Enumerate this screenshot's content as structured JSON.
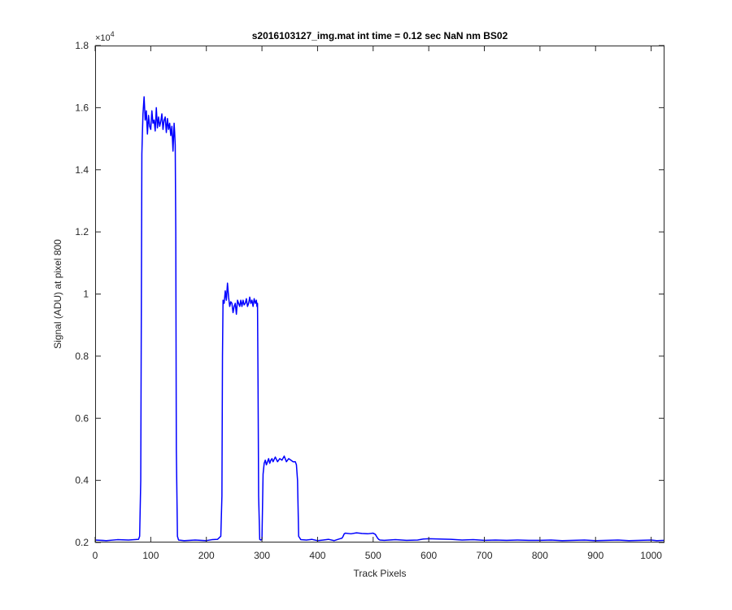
{
  "chart_data": {
    "type": "line",
    "title": "s2016103127_img.mat int time = 0.12 sec  NaN nm BS02",
    "xlabel": "Track Pixels",
    "ylabel": "Signal (ADU) at pixel 800",
    "xlim": [
      0,
      1024
    ],
    "ylim": [
      2000,
      18000
    ],
    "xticks": [
      0,
      100,
      200,
      300,
      400,
      500,
      600,
      700,
      800,
      900,
      1000
    ],
    "xtick_labels": [
      "0",
      "100",
      "200",
      "300",
      "400",
      "500",
      "600",
      "700",
      "800",
      "900",
      "1000"
    ],
    "yticks": [
      2000,
      4000,
      6000,
      8000,
      10000,
      12000,
      14000,
      16000,
      18000
    ],
    "ytick_labels": [
      "0.2",
      "0.4",
      "0.6",
      "0.8",
      "1",
      "1.2",
      "1.4",
      "1.6",
      "1.8"
    ],
    "y_exponent_base": "×10",
    "y_exponent_power": "4",
    "grid": false,
    "line_color": "#0000ff",
    "series": [
      {
        "x": [
          0,
          20,
          40,
          60,
          78,
          80,
          82,
          84,
          85,
          86,
          88,
          90,
          92,
          94,
          96,
          98,
          100,
          102,
          104,
          106,
          108,
          110,
          112,
          114,
          116,
          118,
          120,
          122,
          124,
          126,
          128,
          130,
          132,
          134,
          136,
          138,
          140,
          142,
          143,
          144,
          145,
          146,
          148,
          150,
          160,
          180,
          200,
          210,
          220,
          226,
          228,
          229,
          230,
          232,
          234,
          236,
          238,
          240,
          242,
          244,
          246,
          248,
          250,
          252,
          254,
          256,
          258,
          260,
          262,
          264,
          266,
          268,
          270,
          272,
          274,
          276,
          278,
          280,
          282,
          284,
          286,
          288,
          290,
          291,
          292,
          293,
          294,
          296,
          298,
          300,
          302,
          304,
          306,
          308,
          310,
          312,
          314,
          316,
          318,
          320,
          324,
          328,
          332,
          336,
          340,
          344,
          348,
          352,
          356,
          360,
          362,
          364,
          366,
          370,
          380,
          390,
          400,
          410,
          420,
          430,
          440,
          444,
          446,
          448,
          450,
          460,
          470,
          480,
          490,
          500,
          504,
          506,
          508,
          510,
          512,
          520,
          540,
          560,
          580,
          590,
          600,
          620,
          640,
          660,
          680,
          700,
          720,
          740,
          760,
          780,
          800,
          820,
          840,
          860,
          880,
          900,
          920,
          940,
          960,
          980,
          1000,
          1010,
          1024
        ],
        "y": [
          2080,
          2060,
          2090,
          2080,
          2100,
          2200,
          4000,
          14500,
          15200,
          15800,
          16350,
          15600,
          15900,
          15150,
          15750,
          15400,
          15300,
          15900,
          15500,
          15600,
          15250,
          16000,
          15350,
          15700,
          15400,
          15550,
          15800,
          15300,
          15600,
          15700,
          15200,
          15650,
          15300,
          15500,
          15100,
          15400,
          14600,
          15500,
          15200,
          14800,
          12000,
          5000,
          2200,
          2080,
          2060,
          2080,
          2060,
          2090,
          2100,
          2200,
          3500,
          8000,
          9800,
          9700,
          10100,
          9800,
          10350,
          9900,
          9600,
          9750,
          9700,
          9400,
          9600,
          9700,
          9350,
          9800,
          9700,
          9600,
          9800,
          9600,
          9800,
          9650,
          9700,
          9850,
          9600,
          9700,
          9900,
          9700,
          9800,
          9600,
          9850,
          9700,
          9800,
          9600,
          9700,
          7000,
          3500,
          2100,
          2080,
          2100,
          4200,
          4550,
          4650,
          4500,
          4600,
          4700,
          4550,
          4650,
          4700,
          4600,
          4750,
          4600,
          4700,
          4650,
          4780,
          4600,
          4700,
          4650,
          4600,
          4600,
          4500,
          4000,
          2200,
          2090,
          2080,
          2100,
          2060,
          2080,
          2100,
          2060,
          2120,
          2140,
          2200,
          2280,
          2300,
          2280,
          2310,
          2290,
          2280,
          2300,
          2260,
          2200,
          2140,
          2100,
          2080,
          2070,
          2090,
          2070,
          2080,
          2110,
          2120,
          2110,
          2100,
          2080,
          2090,
          2070,
          2080,
          2070,
          2080,
          2070,
          2070,
          2080,
          2060,
          2070,
          2080,
          2060,
          2070,
          2080,
          2060,
          2070,
          2080,
          2060,
          2070
        ]
      }
    ]
  }
}
